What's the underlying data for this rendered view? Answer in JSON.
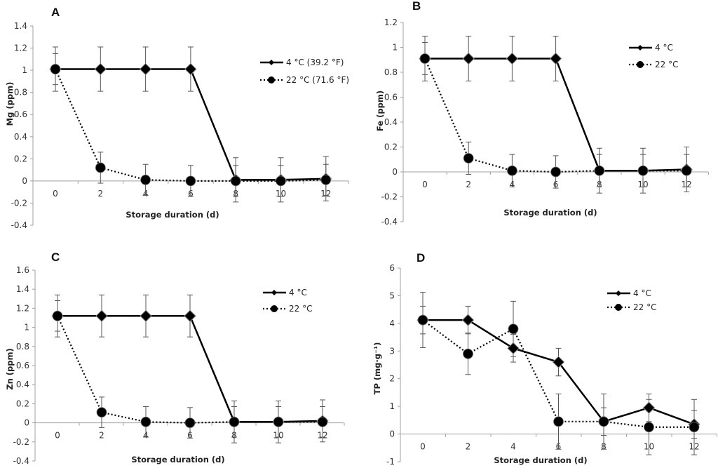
{
  "chart_data": [
    {
      "type": "line",
      "panel": "A",
      "title": "A",
      "xlabel": "Storage duration (d)",
      "ylabel": "Mg (ppm)",
      "categories": [
        "0",
        "2",
        "4",
        "6",
        "8",
        "10",
        "12"
      ],
      "ylim": [
        -0.4,
        1.4
      ],
      "yticks": [
        "1.4",
        "1.2",
        "1",
        "0.8",
        "0.6",
        "0.4",
        "0.2",
        "0",
        "-0.2",
        "-0.4"
      ],
      "ytick_values": [
        1.4,
        1.2,
        1.0,
        0.8,
        0.6,
        0.4,
        0.2,
        0,
        -0.2,
        -0.4
      ],
      "legend": "top-right",
      "grid": false,
      "series": [
        {
          "name": "4 °C (39.2 °F)",
          "style": "solid-diamond",
          "values": [
            1.01,
            1.01,
            1.01,
            1.01,
            0.01,
            0.01,
            0.02
          ],
          "errors": [
            0.2,
            0.2,
            0.2,
            0.2,
            0.2,
            0.2,
            0.2
          ]
        },
        {
          "name": "22 °C (71.6 °F)",
          "style": "dotted-circle",
          "values": [
            1.01,
            0.12,
            0.01,
            0.0,
            0.0,
            0.0,
            0.01
          ],
          "errors": [
            0.14,
            0.14,
            0.14,
            0.14,
            0.14,
            0.14,
            0.14
          ]
        }
      ]
    },
    {
      "type": "line",
      "panel": "B",
      "title": "B",
      "xlabel": "Storage duration (d)",
      "ylabel": "Fe (ppm)",
      "categories": [
        "0",
        "2",
        "4",
        "6",
        "8",
        "10",
        "12"
      ],
      "ylim": [
        -0.4,
        1.2
      ],
      "yticks": [
        "1.2",
        "1",
        "0.8",
        "0.6",
        "0.4",
        "0.2",
        "0",
        "-0.2",
        "-0.4"
      ],
      "ytick_values": [
        1.2,
        1.0,
        0.8,
        0.6,
        0.4,
        0.2,
        0,
        -0.2,
        -0.4
      ],
      "legend": "top-right",
      "grid": false,
      "series": [
        {
          "name": "4 °C",
          "style": "solid-diamond",
          "values": [
            0.91,
            0.91,
            0.91,
            0.91,
            0.01,
            0.01,
            0.02
          ],
          "errors": [
            0.18,
            0.18,
            0.18,
            0.18,
            0.18,
            0.18,
            0.18
          ]
        },
        {
          "name": "22  °C",
          "style": "dotted-circle",
          "values": [
            0.91,
            0.11,
            0.01,
            0.0,
            0.01,
            0.01,
            0.01
          ],
          "errors": [
            0.13,
            0.13,
            0.13,
            0.13,
            0.13,
            0.13,
            0.13
          ]
        }
      ]
    },
    {
      "type": "line",
      "panel": "C",
      "title": "C",
      "xlabel": "Storage duration (d)",
      "ylabel": "Zn (ppm)",
      "categories": [
        "0",
        "2",
        "4",
        "6",
        "8",
        "10",
        "12"
      ],
      "ylim": [
        -0.4,
        1.6
      ],
      "yticks": [
        "1.6",
        "1.4",
        "1.2",
        "1",
        "0.8",
        "0.6",
        "0.4",
        "0.2",
        "0",
        "-0.2",
        "-0.4"
      ],
      "ytick_values": [
        1.6,
        1.4,
        1.2,
        1.0,
        0.8,
        0.6,
        0.4,
        0.2,
        0,
        -0.2,
        -0.4
      ],
      "legend": "top-right",
      "grid": false,
      "series": [
        {
          "name": "4 °C",
          "style": "solid-diamond",
          "values": [
            1.12,
            1.12,
            1.12,
            1.12,
            0.01,
            0.01,
            0.02
          ],
          "errors": [
            0.22,
            0.22,
            0.22,
            0.22,
            0.22,
            0.22,
            0.22
          ]
        },
        {
          "name": "22 °C",
          "style": "dotted-circle",
          "values": [
            1.12,
            0.11,
            0.01,
            0.0,
            0.01,
            0.01,
            0.01
          ],
          "errors": [
            0.16,
            0.16,
            0.16,
            0.16,
            0.16,
            0.16,
            0.16
          ]
        }
      ]
    },
    {
      "type": "line",
      "panel": "D",
      "title": "D",
      "xlabel": "Storage duration (d)",
      "ylabel": "TP (mg·g⁻¹)",
      "categories": [
        "0",
        "2",
        "4",
        "6",
        "8",
        "10",
        "12"
      ],
      "ylim": [
        -1,
        6
      ],
      "yticks": [
        "6",
        "5",
        "4",
        "3",
        "2",
        "1",
        "0",
        "-1"
      ],
      "ytick_values": [
        6,
        5,
        4,
        3,
        2,
        1,
        0,
        -1
      ],
      "legend": "top-right",
      "grid": false,
      "series": [
        {
          "name": "4 °C",
          "style": "solid-diamond",
          "values": [
            4.12,
            4.12,
            3.1,
            2.6,
            0.45,
            0.95,
            0.35
          ],
          "errors": [
            0.5,
            0.5,
            0.5,
            0.5,
            0.5,
            0.5,
            0.5
          ]
        },
        {
          "name": "22  °C",
          "style": "dotted-circle",
          "values": [
            4.12,
            2.9,
            3.8,
            0.45,
            0.45,
            0.25,
            0.25
          ],
          "errors": [
            1.0,
            0.75,
            1.0,
            1.0,
            1.0,
            1.0,
            1.0
          ]
        }
      ]
    }
  ]
}
